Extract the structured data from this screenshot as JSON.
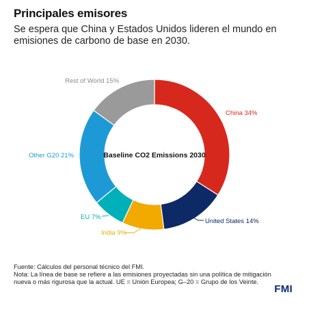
{
  "title": "Principales emisores",
  "subtitle": "Se espera que China y Estados Unidos lideren el mundo en emisiones de carbono de base en 2030.",
  "chart_data": {
    "type": "pie",
    "donut": true,
    "center_label": "Baseline CO2 Emissions 2030",
    "unit": "%",
    "slices": [
      {
        "label": "China",
        "display": "China 34%",
        "value": 34,
        "color": "#d7281d"
      },
      {
        "label": "United States",
        "display": "United States 14%",
        "value": 14,
        "color": "#0d2a66"
      },
      {
        "label": "India",
        "display": "India 9%",
        "value": 9,
        "color": "#f2a900"
      },
      {
        "label": "EU",
        "display": "EU 7%",
        "value": 7,
        "color": "#00b0b9"
      },
      {
        "label": "Other G20",
        "display": "Other G20 21%",
        "value": 21,
        "color": "#1d9ad6"
      },
      {
        "label": "Rest of World",
        "display": "Rest of World 15%",
        "value": 15,
        "color": "#9a9a9a"
      }
    ]
  },
  "footer": {
    "source": "Fuente: Cálculos del personal técnico del FMI.",
    "note_line1": "Nota: La línea de base se refiere a las emisiones proyectadas sin una política de mitigación",
    "note_line2": "nueva o más rigurosa que la actual. UE = Unión Europea; G–20 = Grupo de los Veinte."
  },
  "logo": "FMI"
}
